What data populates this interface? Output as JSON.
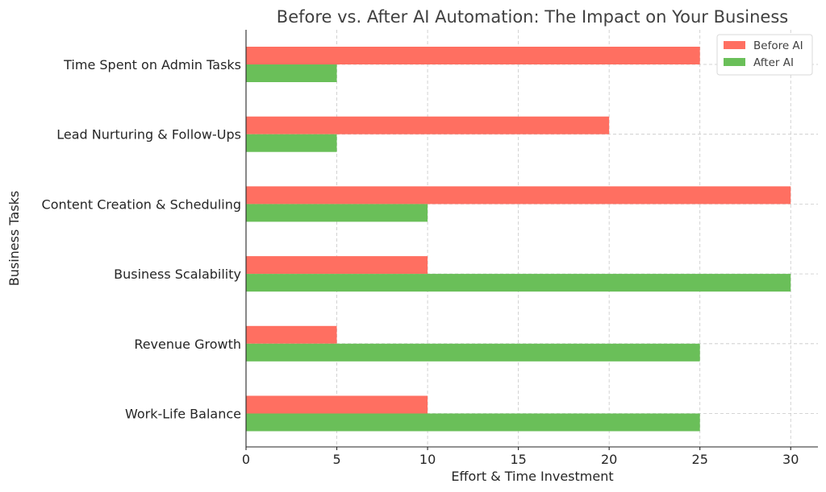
{
  "chart_data": {
    "type": "bar",
    "orientation": "horizontal",
    "title": "Before vs. After AI Automation: The Impact on Your Business",
    "xlabel": "Effort & Time Investment",
    "ylabel": "Business Tasks",
    "xlim": [
      0,
      31.5
    ],
    "xticks": [
      0,
      5,
      10,
      15,
      20,
      25,
      30
    ],
    "categories": [
      "Time Spent on Admin Tasks",
      "Lead Nurturing & Follow-Ups",
      "Content Creation & Scheduling",
      "Business Scalability",
      "Revenue Growth",
      "Work-Life Balance"
    ],
    "series": [
      {
        "name": "Before AI",
        "color": "#ff6f61",
        "values": [
          25,
          20,
          30,
          10,
          5,
          10
        ]
      },
      {
        "name": "After AI",
        "color": "#6abf59",
        "values": [
          5,
          5,
          10,
          30,
          25,
          25
        ]
      }
    ],
    "grid": true,
    "legend_position": "top-right"
  }
}
